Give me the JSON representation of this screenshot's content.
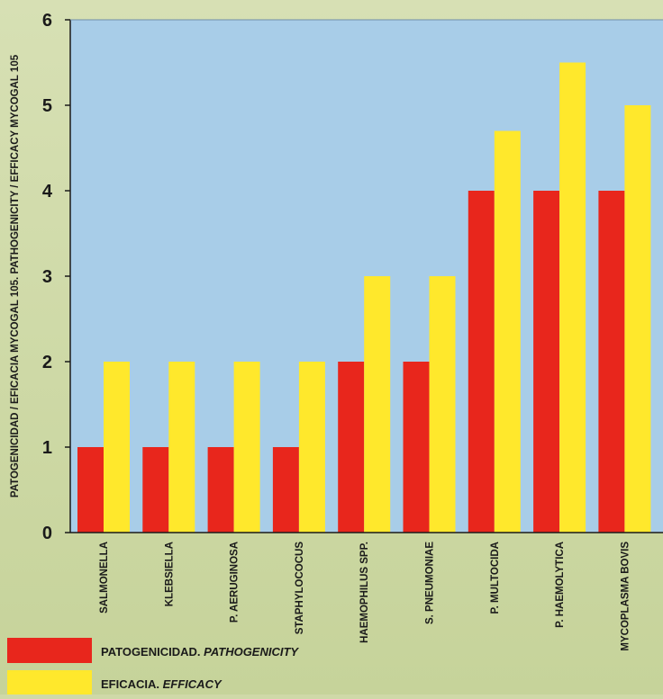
{
  "chart_data": {
    "type": "bar",
    "title": "",
    "xlabel": "",
    "ylabel": "PATOGENICIDAD / EFICACIA MYCOGAL 105. PATHOGENICITY / EFFICACY MYCOGAL 105",
    "ylim": [
      0,
      6
    ],
    "yticks": [
      0,
      1,
      2,
      3,
      4,
      5,
      6
    ],
    "grid": false,
    "legend_position": "bottom-left",
    "categories": [
      "SALMONELLA",
      "KLEBSIELLA",
      "P. AERUGINOSA",
      "STAPHYLOCOCUS",
      "HAEMOPHILUS SPP.",
      "S. PNEUMONIAE",
      "P. MULTOCIDA",
      "P. HAEMOLYTICA",
      "MYCOPLASMA BOVIS"
    ],
    "series": [
      {
        "name": "PATOGENICIDAD. PATHOGENICITY",
        "name_plain": "PATOGENICIDAD.",
        "name_italic": "PATHOGENICITY",
        "color": "#e8261c",
        "values": [
          1,
          1,
          1,
          1,
          2,
          2,
          4,
          4,
          4
        ]
      },
      {
        "name": "EFICACIA. EFFICACY",
        "name_plain": "EFICACIA.",
        "name_italic": "EFFICACY",
        "color": "#ffe82c",
        "values": [
          2,
          2,
          2,
          2,
          3,
          3,
          4.7,
          5.5,
          5
        ]
      }
    ],
    "colors": {
      "plot_background": "#a8cde8",
      "page_background": "#cfd9a8",
      "axis": "#1a1a1a",
      "text": "#1a1a1a"
    }
  }
}
